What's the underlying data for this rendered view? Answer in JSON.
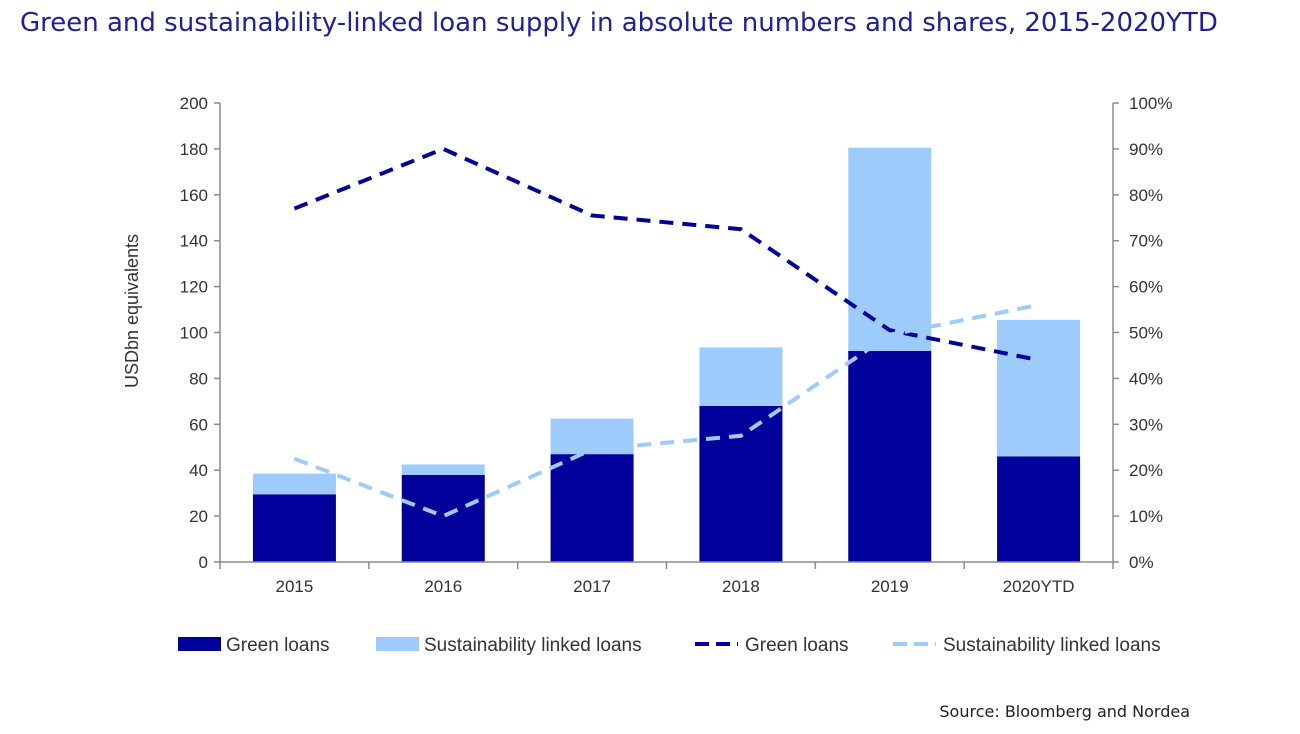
{
  "header": {
    "title": "Green and sustainability-linked loan supply in absolute numbers and shares, 2015-2020YTD"
  },
  "footer": {
    "source": "Source: Bloomberg and Nordea"
  },
  "colors": {
    "green_loans": "#00009b",
    "sustainability_linked": "#9dcbfb",
    "axis": "#8c8c8c"
  },
  "chart_data": {
    "type": "bar",
    "stacked": true,
    "title": "Green and sustainability-linked loan supply in absolute numbers and shares, 2015-2020YTD",
    "categories": [
      "2015",
      "2016",
      "2017",
      "2018",
      "2019",
      "2020YTD"
    ],
    "ylabel": "USDbn equivalents",
    "ylim": [
      0,
      200
    ],
    "y_ticks": [
      0,
      20,
      40,
      60,
      80,
      100,
      120,
      140,
      160,
      180,
      200
    ],
    "y2lim": [
      0,
      100
    ],
    "y2_ticks": [
      "0%",
      "10%",
      "20%",
      "30%",
      "40%",
      "50%",
      "60%",
      "70%",
      "80%",
      "90%",
      "100%"
    ],
    "grid": false,
    "legend_position": "bottom",
    "series": [
      {
        "name": "Green loans",
        "type": "bar",
        "axis": "left",
        "values": [
          29.5,
          38,
          47,
          68,
          92,
          46
        ]
      },
      {
        "name": "Sustainability linked loans",
        "type": "bar",
        "axis": "left",
        "values": [
          9,
          4.5,
          15.5,
          25.5,
          88.5,
          59.5
        ]
      },
      {
        "name": "Green loans",
        "type": "line",
        "style": "dashed",
        "axis": "right",
        "unit": "%",
        "values": [
          77,
          90,
          75.5,
          72.5,
          50.5,
          44
        ]
      },
      {
        "name": "Sustainability linked loans",
        "type": "line",
        "style": "dashed",
        "axis": "right",
        "unit": "%",
        "values": [
          22.5,
          10,
          24.5,
          27.5,
          49.5,
          56
        ]
      }
    ]
  }
}
